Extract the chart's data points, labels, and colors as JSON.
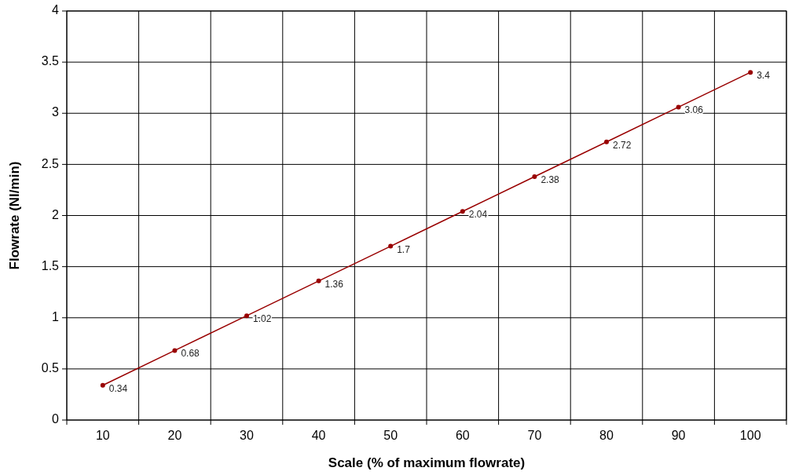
{
  "chart_data": {
    "type": "line",
    "xlabel": "Scale (%  of maximum  flowrate)",
    "ylabel": "Flowrate (Nl/min)",
    "categories": [
      "10",
      "20",
      "30",
      "40",
      "50",
      "60",
      "70",
      "80",
      "90",
      "100"
    ],
    "series": [
      {
        "color": "#990000",
        "values": [
          0.34,
          0.68,
          1.02,
          1.36,
          1.7,
          2.04,
          2.38,
          2.72,
          3.06,
          3.4
        ]
      }
    ],
    "ylim": [
      0,
      4
    ],
    "yticks": [
      0,
      0.5,
      1,
      1.5,
      2,
      2.5,
      3,
      3.5,
      4
    ],
    "grid": true,
    "marker": "circle",
    "data_labels": true
  }
}
